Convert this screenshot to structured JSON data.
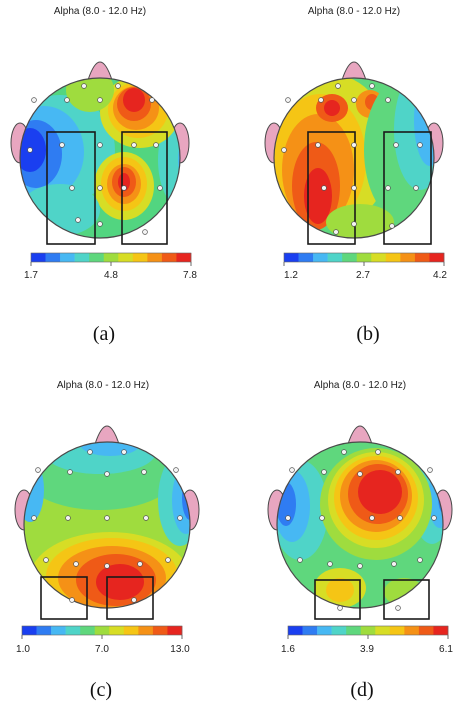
{
  "figure": {
    "band_title": "Alpha (8.0 - 12.0 Hz)",
    "colorbar_colors": [
      "#1a3ff0",
      "#2f7cf2",
      "#47b8f3",
      "#4fd4c8",
      "#5fd77d",
      "#9fdc3e",
      "#d7dd25",
      "#f5c515",
      "#f59116",
      "#ef5a17",
      "#e6251f"
    ],
    "colors": {
      "head_outline": "#4a4a4a",
      "ear": "#e8a6c0",
      "box": "#1a1a1a",
      "electrode_fill": "#f4f4f4"
    },
    "panels": [
      {
        "id": "a",
        "title": "Alpha (8.0 - 12.0 Hz)",
        "caption": "(a)",
        "ticks": [
          "1.7",
          "4.8",
          "7.8"
        ],
        "min": 1.7,
        "max": 7.8
      },
      {
        "id": "b",
        "title": "Alpha (8.0 - 12.0 Hz)",
        "caption": "(b)",
        "ticks": [
          "1.2",
          "2.7",
          "4.2"
        ],
        "min": 1.2,
        "max": 4.2
      },
      {
        "id": "c",
        "title": "Alpha (8.0 - 12.0 Hz)",
        "caption": "(c)",
        "ticks": [
          "1.0",
          "7.0",
          "13.0"
        ],
        "min": 1.0,
        "max": 13.0
      },
      {
        "id": "d",
        "title": "Alpha (8.0 - 12.0 Hz)",
        "caption": "(d)",
        "ticks": [
          "1.6",
          "3.9",
          "6.1"
        ],
        "min": 1.6,
        "max": 6.1
      }
    ]
  }
}
